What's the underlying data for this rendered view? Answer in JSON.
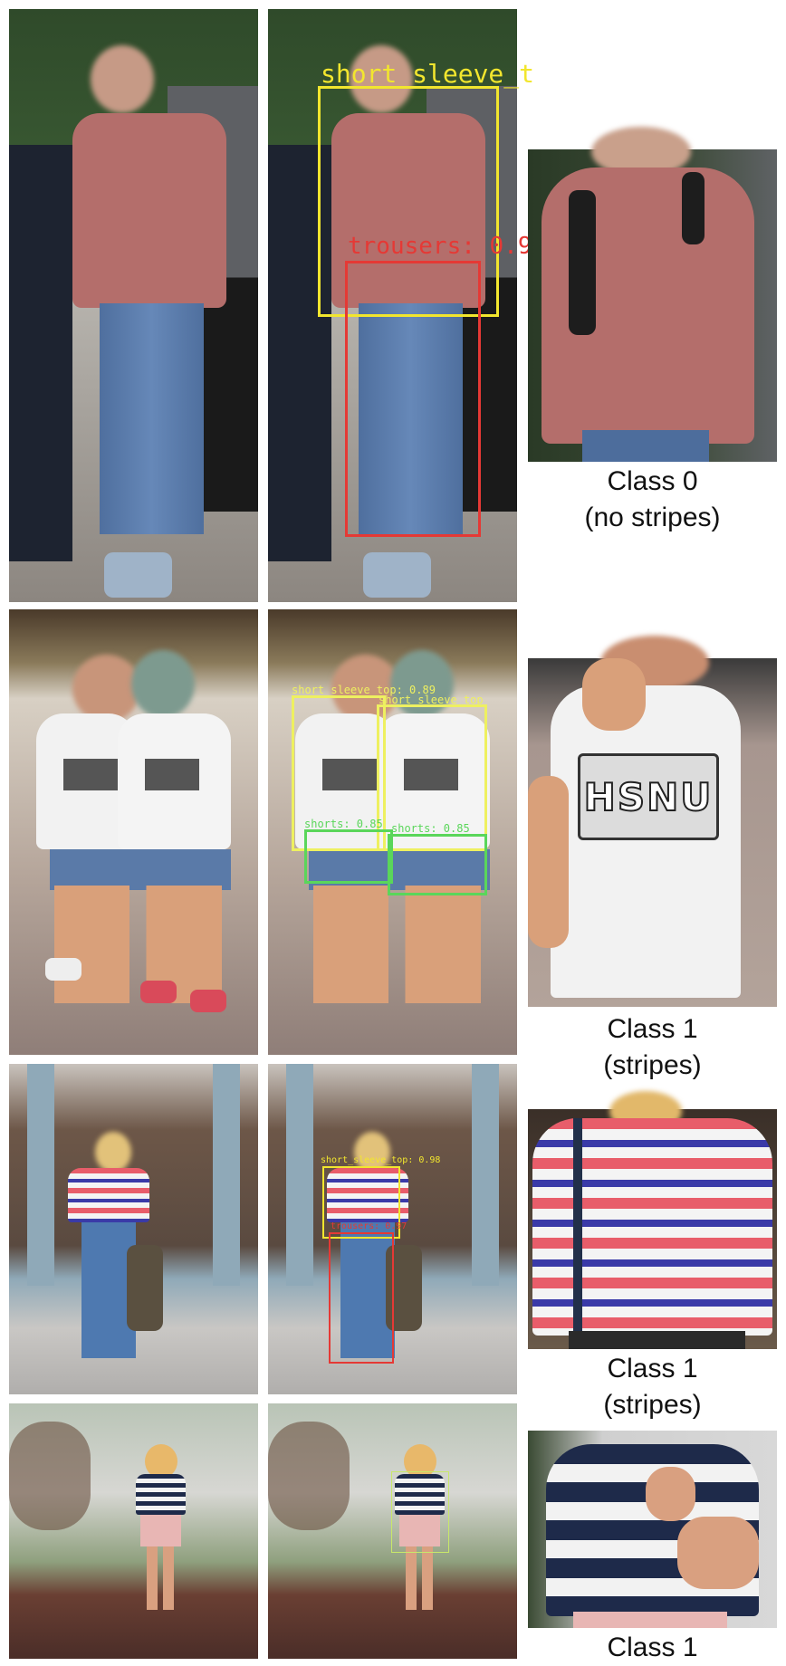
{
  "rows": [
    {
      "detections": [
        {
          "label": "short_sleeve_t",
          "color": "#f2e62e"
        },
        {
          "label": "trousers: 0.9",
          "color": "#e53935"
        }
      ],
      "caption_line1": "Class 0",
      "caption_line2": "(no stripes)",
      "shirt_color": "#b46e6b"
    },
    {
      "detections": [
        {
          "label": "short_sleeve_top: 0.89",
          "color": "#eef060"
        },
        {
          "label": "short_sleeve_top",
          "color": "#eef060"
        },
        {
          "label": "shorts: 0.85",
          "color": "#5ad65a"
        },
        {
          "label": "shorts: 0.85",
          "color": "#5ad65a"
        }
      ],
      "shirt_print": "HSNU",
      "caption_line1": "Class 1",
      "caption_line2": "(stripes)",
      "shirt_color": "#f2f2f2"
    },
    {
      "detections": [
        {
          "label": "short_sleeve_top: 0.98",
          "color": "#f2e62e"
        },
        {
          "label": "trousers: 0.97",
          "color": "#e53935"
        }
      ],
      "caption_line1": "Class 1",
      "caption_line2": "(stripes)",
      "stripe_colors": [
        "#e85d6a",
        "#f4f4f4",
        "#3a3aa8"
      ]
    },
    {
      "detections": [
        {
          "label": "",
          "color": "#c8e86a"
        }
      ],
      "caption_line1": "Class 1",
      "stripe_colors": [
        "#1e2a4a",
        "#f2f2f2"
      ]
    }
  ]
}
